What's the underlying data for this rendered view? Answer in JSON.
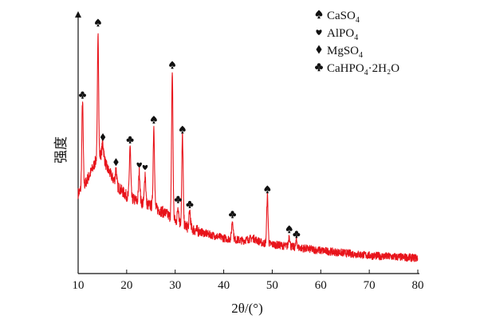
{
  "chart_data": {
    "type": "line",
    "title": "",
    "xlabel": "2θ/(°)",
    "ylabel": "强度",
    "xlim": [
      10,
      80
    ],
    "x_ticks": [
      10,
      20,
      30,
      40,
      50,
      60,
      70,
      80
    ],
    "y_ticks_shown": false,
    "line_color": "#e8141b",
    "legend_placement": "top-right",
    "legend": [
      {
        "marker": "spade-icon",
        "label": "CaSO",
        "sub": "4",
        "tail": ""
      },
      {
        "marker": "heart-icon",
        "label": "AlPO",
        "sub": "4",
        "tail": ""
      },
      {
        "marker": "diamond-icon",
        "label": "MgSO",
        "sub": "4",
        "tail": ""
      },
      {
        "marker": "club-icon",
        "label": "CaHPO",
        "sub": "4",
        "tail": "·2H₂O"
      }
    ],
    "baseline": [
      [
        10.0,
        0.3
      ],
      [
        11.0,
        0.32
      ],
      [
        12.0,
        0.36
      ],
      [
        13.0,
        0.4
      ],
      [
        13.8,
        0.44
      ],
      [
        15.0,
        0.46
      ],
      [
        16.0,
        0.4
      ],
      [
        18.0,
        0.33
      ],
      [
        20.0,
        0.29
      ],
      [
        22.0,
        0.27
      ],
      [
        25.0,
        0.25
      ],
      [
        28.0,
        0.22
      ],
      [
        30.0,
        0.19
      ],
      [
        33.0,
        0.16
      ],
      [
        36.0,
        0.14
      ],
      [
        40.0,
        0.12
      ],
      [
        44.0,
        0.11
      ],
      [
        46.0,
        0.12
      ],
      [
        48.0,
        0.1
      ],
      [
        52.0,
        0.09
      ],
      [
        56.0,
        0.08
      ],
      [
        60.0,
        0.07
      ],
      [
        65.0,
        0.06
      ],
      [
        70.0,
        0.05
      ],
      [
        75.0,
        0.045
      ],
      [
        80.0,
        0.04
      ]
    ],
    "peaks": [
      {
        "x": 10.9,
        "h": 0.67,
        "w": 0.14,
        "phase": "club-icon"
      },
      {
        "x": 14.1,
        "h": 0.96,
        "w": 0.12,
        "phase": "spade-icon"
      },
      {
        "x": 15.1,
        "h": 0.5,
        "w": 0.16,
        "phase": "diamond-icon"
      },
      {
        "x": 17.8,
        "h": 0.4,
        "w": 0.14,
        "phase": "diamond-icon"
      },
      {
        "x": 20.7,
        "h": 0.49,
        "w": 0.14,
        "phase": "club-icon"
      },
      {
        "x": 22.6,
        "h": 0.39,
        "w": 0.14,
        "phase": "heart-icon"
      },
      {
        "x": 23.8,
        "h": 0.38,
        "w": 0.14,
        "phase": "heart-icon"
      },
      {
        "x": 25.6,
        "h": 0.57,
        "w": 0.14,
        "phase": "spade-icon"
      },
      {
        "x": 29.4,
        "h": 0.79,
        "w": 0.14,
        "phase": "spade-icon"
      },
      {
        "x": 31.5,
        "h": 0.53,
        "w": 0.14,
        "phase": "spade-icon"
      },
      {
        "x": 30.6,
        "h": 0.25,
        "w": 0.14,
        "phase": "club-icon"
      },
      {
        "x": 33.0,
        "h": 0.23,
        "w": 0.14,
        "phase": "club-icon"
      },
      {
        "x": 41.8,
        "h": 0.19,
        "w": 0.16,
        "phase": "club-icon"
      },
      {
        "x": 49.0,
        "h": 0.29,
        "w": 0.14,
        "phase": "spade-icon"
      },
      {
        "x": 53.5,
        "h": 0.13,
        "w": 0.14,
        "phase": "spade-icon"
      },
      {
        "x": 55.0,
        "h": 0.11,
        "w": 0.14,
        "phase": "club-icon"
      }
    ]
  }
}
